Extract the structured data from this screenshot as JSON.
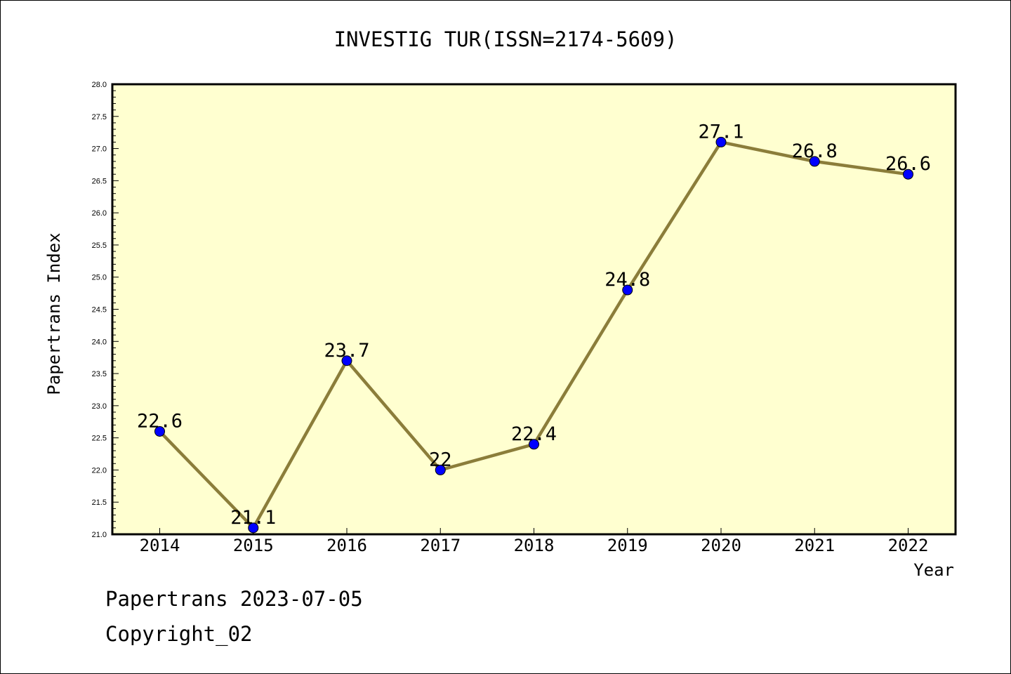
{
  "chart_data": {
    "type": "line",
    "title": "INVESTIG TUR(ISSN=2174-5609)",
    "xlabel": "Year",
    "ylabel": "Papertrans Index",
    "x": [
      "2014",
      "2015",
      "2016",
      "2017",
      "2018",
      "2019",
      "2020",
      "2021",
      "2022"
    ],
    "series": [
      {
        "values": [
          22.6,
          21.1,
          23.7,
          22.0,
          22.4,
          24.8,
          27.1,
          26.8,
          26.6
        ],
        "labels": [
          "22.6",
          "21.1",
          "23.7",
          "22",
          "22.4",
          "24.8",
          "27.1",
          "26.8",
          "26.6"
        ]
      }
    ],
    "ylim": [
      21.0,
      28.0
    ],
    "yticks": [
      "21.0",
      "21.5",
      "22.0",
      "22.5",
      "23.0",
      "23.5",
      "24.0",
      "24.5",
      "25.0",
      "25.5",
      "26.0",
      "26.5",
      "27.0",
      "27.5",
      "28.0"
    ],
    "grid": false,
    "colors": {
      "plot_background": "#ffffd0",
      "line": "#8b7d3a",
      "marker": "#0000ff"
    }
  },
  "footer": {
    "line1": "Papertrans 2023-07-05",
    "line2": "Copyright_02"
  }
}
